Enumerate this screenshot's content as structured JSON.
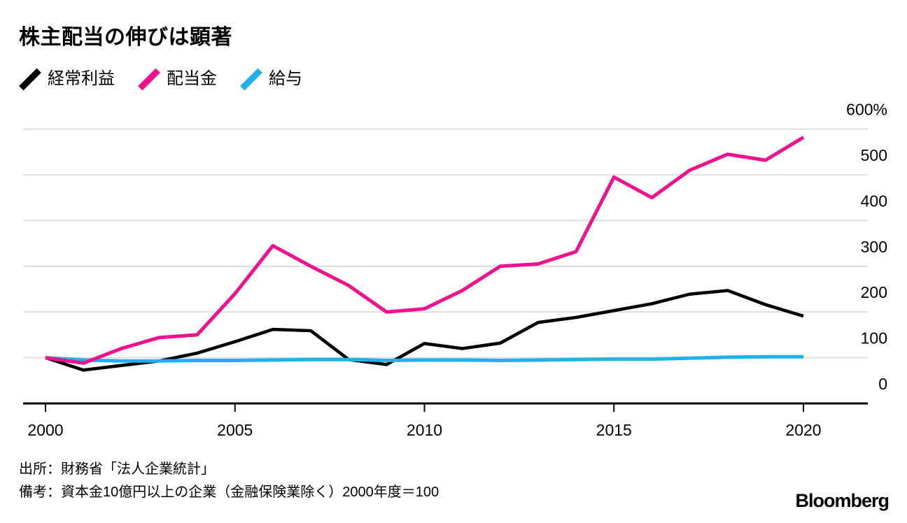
{
  "title": "株主配当の伸びは顕著",
  "footer": {
    "source": "出所：財務省「法人企業統計」",
    "note": "備考：資本金10億円以上の企業（金融保険業除く）2000年度＝100",
    "brand": "Bloomberg"
  },
  "colors": {
    "ordinary_profit": "#000000",
    "dividends": "#f2108f",
    "wages": "#1fb1ec",
    "gridline": "#d8d8d8",
    "axis": "#000000"
  },
  "chart_data": {
    "type": "line",
    "x": [
      2000,
      2001,
      2002,
      2003,
      2004,
      2005,
      2006,
      2007,
      2008,
      2009,
      2010,
      2011,
      2012,
      2013,
      2014,
      2015,
      2016,
      2017,
      2018,
      2019,
      2020
    ],
    "x_ticks": [
      2000,
      2005,
      2010,
      2015,
      2020
    ],
    "y_ticks": [
      0,
      100,
      200,
      300,
      400,
      500,
      600
    ],
    "y_tick_labels": [
      "0",
      "100",
      "200",
      "300",
      "400",
      "500",
      "600%"
    ],
    "ylim": [
      0,
      600
    ],
    "grid": true,
    "legend_position": "top-left",
    "baseline_note": "2000年度＝100",
    "series": [
      {
        "key": "ordinary-profit",
        "name": "経常利益",
        "color": "#000000",
        "values": [
          100,
          73,
          83,
          93,
          110,
          135,
          162,
          159,
          96,
          85,
          131,
          120,
          132,
          177,
          188,
          203,
          218,
          239,
          247,
          216,
          191
        ]
      },
      {
        "key": "dividends",
        "name": "配当金",
        "color": "#f2108f",
        "values": [
          100,
          88,
          120,
          144,
          150,
          240,
          345,
          300,
          258,
          200,
          207,
          247,
          300,
          305,
          332,
          495,
          450,
          510,
          545,
          532,
          582
        ]
      },
      {
        "key": "wages",
        "name": "給与",
        "color": "#1fb1ec",
        "values": [
          100,
          95,
          93,
          93,
          94,
          94,
          95,
          96,
          96,
          94,
          95,
          95,
          94,
          95,
          96,
          97,
          97,
          99,
          101,
          102,
          102
        ]
      }
    ]
  }
}
